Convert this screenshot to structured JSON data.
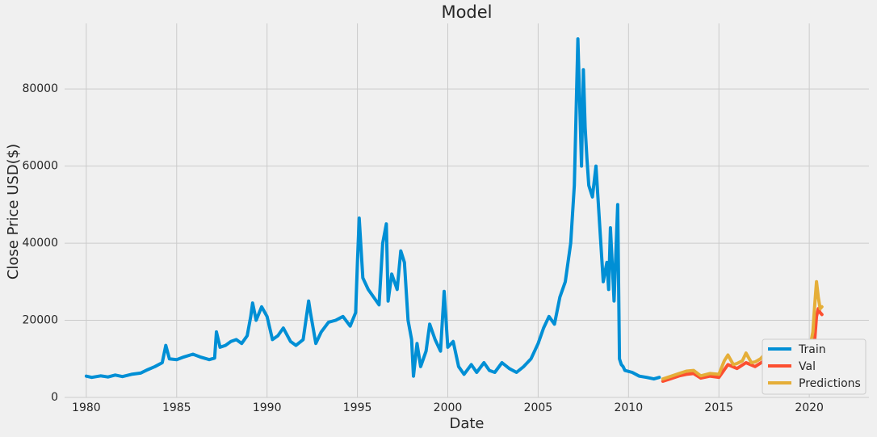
{
  "chart_data": {
    "type": "line",
    "title": "Model",
    "xlabel": "Date",
    "ylabel": "Close Price USD($)",
    "xlim": [
      1978.8,
      2023.3
    ],
    "ylim": [
      0,
      97000
    ],
    "x_ticks": [
      1980,
      1985,
      1990,
      1995,
      2000,
      2005,
      2010,
      2015,
      2020
    ],
    "y_ticks": [
      0,
      20000,
      40000,
      60000,
      80000
    ],
    "grid": true,
    "legend_position": "lower-right",
    "series": [
      {
        "name": "Train",
        "color": "#008fd5",
        "x": [
          1980.0,
          1980.3,
          1980.8,
          1981.2,
          1981.6,
          1982.0,
          1982.5,
          1983.0,
          1983.4,
          1983.8,
          1984.2,
          1984.4,
          1984.6,
          1985.0,
          1985.4,
          1985.9,
          1986.3,
          1986.8,
          1987.1,
          1987.2,
          1987.4,
          1987.7,
          1988.0,
          1988.3,
          1988.6,
          1988.9,
          1989.1,
          1989.2,
          1989.4,
          1989.7,
          1990.0,
          1990.3,
          1990.6,
          1990.9,
          1991.3,
          1991.6,
          1992.0,
          1992.3,
          1992.4,
          1992.7,
          1993.0,
          1993.4,
          1993.8,
          1994.2,
          1994.6,
          1994.9,
          1995.0,
          1995.1,
          1995.3,
          1995.6,
          1995.9,
          1996.2,
          1996.4,
          1996.6,
          1996.7,
          1996.9,
          1997.2,
          1997.4,
          1997.6,
          1997.8,
          1998.0,
          1998.1,
          1998.3,
          1998.5,
          1998.8,
          1999.0,
          1999.3,
          1999.6,
          1999.8,
          2000.0,
          2000.3,
          2000.6,
          2000.9,
          2001.3,
          2001.6,
          2002.0,
          2002.3,
          2002.6,
          2003.0,
          2003.4,
          2003.8,
          2004.2,
          2004.6,
          2005.0,
          2005.3,
          2005.6,
          2005.9,
          2006.2,
          2006.5,
          2006.8,
          2007.0,
          2007.2,
          2007.4,
          2007.5,
          2007.6,
          2007.7,
          2007.8,
          2008.0,
          2008.2,
          2008.4,
          2008.6,
          2008.8,
          2008.9,
          2009.0,
          2009.2,
          2009.4,
          2009.5,
          2009.6,
          2009.7,
          2009.8,
          2010.2,
          2010.6,
          2011.0,
          2011.4,
          2011.7
        ],
        "y": [
          5500,
          5200,
          5600,
          5300,
          5800,
          5400,
          6000,
          6300,
          7200,
          8000,
          9000,
          13500,
          10000,
          9800,
          10500,
          11200,
          10500,
          9800,
          10200,
          17000,
          13000,
          13500,
          14500,
          15000,
          14000,
          16000,
          21000,
          24500,
          20000,
          23500,
          21000,
          15000,
          16000,
          18000,
          14500,
          13500,
          15000,
          25000,
          22000,
          14000,
          17000,
          19500,
          20000,
          21000,
          18500,
          22000,
          35000,
          46500,
          31000,
          28000,
          26000,
          24000,
          40000,
          45000,
          25000,
          32000,
          28000,
          38000,
          35000,
          20000,
          15000,
          5500,
          14000,
          8000,
          12000,
          19000,
          15000,
          12000,
          27500,
          13000,
          14500,
          8000,
          6000,
          8500,
          6500,
          9000,
          7000,
          6500,
          9000,
          7500,
          6500,
          8000,
          10000,
          14000,
          18000,
          21000,
          19000,
          26000,
          30000,
          40000,
          55000,
          93000,
          60000,
          85000,
          70000,
          62000,
          55000,
          52000,
          60000,
          45000,
          30000,
          35000,
          28000,
          44000,
          25000,
          50000,
          10000,
          8500,
          8000,
          7000,
          6500,
          5500,
          5200,
          4800,
          5200
        ]
      },
      {
        "name": "Val",
        "color": "#fc4f30",
        "x": [
          2011.9,
          2012.3,
          2012.8,
          2013.2,
          2013.6,
          2014.0,
          2014.5,
          2015.0,
          2015.5,
          2016.0,
          2016.5,
          2017.0,
          2017.5,
          2018.0,
          2018.5,
          2019.0,
          2019.5,
          2020.0,
          2020.3,
          2020.4,
          2020.5,
          2020.6,
          2020.7
        ],
        "y": [
          4200,
          4800,
          5600,
          6000,
          6200,
          5000,
          5500,
          5200,
          8500,
          7500,
          9000,
          8000,
          9500,
          10000,
          9000,
          9500,
          10000,
          10500,
          15000,
          21000,
          23000,
          22000,
          21500
        ]
      },
      {
        "name": "Predictions",
        "color": "#e5ae38",
        "x": [
          2011.9,
          2012.3,
          2012.8,
          2013.2,
          2013.6,
          2014.0,
          2014.5,
          2015.0,
          2015.3,
          2015.5,
          2015.8,
          2016.0,
          2016.3,
          2016.5,
          2016.8,
          2017.0,
          2017.3,
          2017.5,
          2018.0,
          2018.5,
          2019.0,
          2019.5,
          2020.0,
          2020.2,
          2020.3,
          2020.4,
          2020.5,
          2020.6,
          2020.7
        ],
        "y": [
          4800,
          5400,
          6200,
          6800,
          7000,
          5600,
          6200,
          6000,
          9500,
          11000,
          8500,
          8800,
          9500,
          11500,
          9000,
          9200,
          10000,
          11000,
          11000,
          10000,
          10500,
          11000,
          12000,
          17000,
          24000,
          30000,
          26000,
          23000,
          23500
        ]
      }
    ]
  }
}
